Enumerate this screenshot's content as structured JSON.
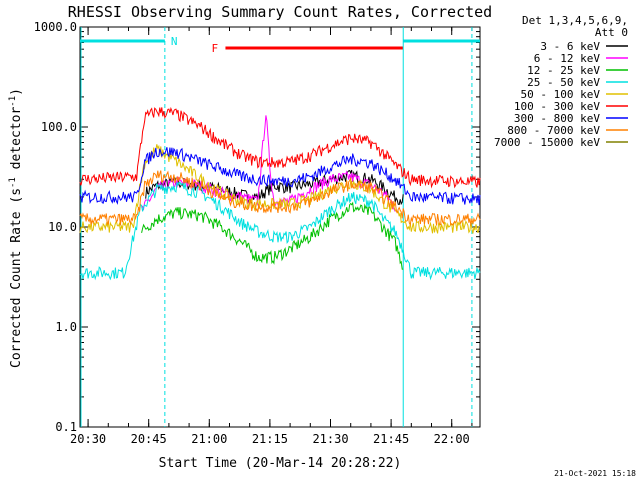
{
  "chart_data": {
    "type": "line",
    "title": "RHESSI Observing Summary Count Rates, Corrected",
    "xlabel": "Start Time (20-Mar-14 20:28:22)",
    "ylabel": "Corrected Count Rate (s",
    "ylabel_sup": "-1",
    "ylabel_tail": " detector",
    "ylabel_close": ")",
    "yscale": "log",
    "ylim": [
      0.1,
      1000
    ],
    "xlim_minutes": [
      -2,
      97
    ],
    "x_tick_minutes": [
      0,
      15,
      30,
      45,
      60,
      75,
      90
    ],
    "x_tick_labels": [
      "20:30",
      "20:45",
      "21:00",
      "21:15",
      "21:30",
      "21:45",
      "22:00"
    ],
    "y_ticks": [
      0.1,
      1,
      10,
      100,
      1000
    ],
    "y_tick_labels": [
      "0.1",
      "1.0",
      "10.0",
      "100.0",
      "1000.0"
    ],
    "legend_header": [
      "Det 1,3,4,5,6,9,",
      "Att 0"
    ],
    "legend_position": "outside-right",
    "footer_date": "21-Oct-2021 15:18",
    "markers": {
      "N_label": "N",
      "F_label": "F",
      "night_segments": [
        [
          -2,
          19
        ],
        [
          78,
          97
        ]
      ],
      "flare_segment": [
        34,
        78
      ],
      "night_bounds": [
        [
          19
        ],
        [
          78
        ]
      ],
      "dashed_bounds": [
        19,
        95
      ]
    },
    "series": [
      {
        "name": "3 - 6 keV",
        "color": "#000000",
        "x": [
          -2,
          10,
          14,
          17,
          22,
          28,
          33,
          38,
          42,
          46,
          50,
          55,
          60,
          65,
          70,
          73,
          76,
          78,
          80,
          97
        ],
        "y": [
          null,
          null,
          22,
          26,
          28,
          26,
          24,
          21,
          20,
          26,
          25,
          27,
          30,
          33,
          30,
          25,
          20,
          19,
          null,
          null
        ]
      },
      {
        "name": "6 - 12 keV",
        "color": "#ff00ff",
        "x": [
          -2,
          13,
          17,
          22,
          28,
          33,
          38,
          42,
          44,
          45,
          46,
          50,
          55,
          60,
          65,
          70,
          73,
          76,
          78,
          97
        ],
        "y": [
          null,
          14,
          24,
          28,
          26,
          22,
          20,
          18,
          140,
          40,
          18,
          18,
          24,
          30,
          32,
          26,
          22,
          16,
          null,
          null
        ]
      },
      {
        "name": "12 - 25 keV",
        "color": "#00c000",
        "x": [
          -2,
          13,
          17,
          22,
          28,
          33,
          38,
          42,
          46,
          50,
          55,
          60,
          65,
          70,
          73,
          76,
          78,
          97
        ],
        "y": [
          null,
          9,
          12,
          14,
          13,
          10,
          7,
          5,
          5,
          6,
          8,
          12,
          16,
          14,
          10,
          7,
          4,
          null
        ]
      },
      {
        "name": "25 - 50 keV",
        "color": "#00e0e0",
        "x": [
          -2,
          9,
          13,
          17,
          22,
          28,
          33,
          38,
          42,
          46,
          50,
          55,
          60,
          65,
          70,
          73,
          76,
          78,
          80,
          97
        ],
        "y": [
          3.5,
          3.5,
          15,
          24,
          26,
          22,
          16,
          11,
          9,
          8,
          8,
          10,
          15,
          20,
          18,
          12,
          9,
          6,
          3.5,
          3.5
        ]
      },
      {
        "name": "50 - 100 keV",
        "color": "#e0c000",
        "x": [
          -2,
          11,
          14,
          17,
          22,
          28,
          33,
          38,
          42,
          46,
          50,
          55,
          60,
          65,
          70,
          73,
          76,
          80,
          97
        ],
        "y": [
          10,
          10,
          45,
          60,
          45,
          30,
          22,
          18,
          17,
          17,
          17,
          19,
          24,
          28,
          24,
          18,
          14,
          10,
          10
        ]
      },
      {
        "name": "100 - 300 keV",
        "color": "#ff0000",
        "x": [
          -2,
          12,
          14,
          17,
          22,
          28,
          33,
          38,
          42,
          46,
          50,
          55,
          60,
          65,
          70,
          73,
          76,
          80,
          97
        ],
        "y": [
          30,
          32,
          125,
          145,
          135,
          100,
          70,
          52,
          45,
          44,
          45,
          52,
          65,
          78,
          70,
          55,
          42,
          30,
          28
        ]
      },
      {
        "name": "300 - 800 keV",
        "color": "#0000ff",
        "x": [
          -2,
          12,
          14,
          17,
          22,
          28,
          33,
          38,
          42,
          46,
          50,
          55,
          60,
          65,
          70,
          73,
          76,
          80,
          97
        ],
        "y": [
          20,
          20,
          45,
          58,
          56,
          45,
          38,
          32,
          30,
          29,
          29,
          32,
          40,
          48,
          44,
          36,
          30,
          20,
          19
        ]
      },
      {
        "name": "800 - 7000 keV",
        "color": "#ff8000",
        "x": [
          -2,
          12,
          14,
          17,
          22,
          28,
          33,
          38,
          42,
          46,
          50,
          55,
          60,
          65,
          70,
          73,
          76,
          80,
          97
        ],
        "y": [
          12,
          12,
          26,
          33,
          32,
          26,
          20,
          17,
          16,
          16,
          16,
          18,
          23,
          27,
          25,
          20,
          16,
          12,
          12
        ]
      },
      {
        "name": "7000 - 15000 keV",
        "color": "#808000",
        "x": [],
        "y": []
      }
    ]
  }
}
